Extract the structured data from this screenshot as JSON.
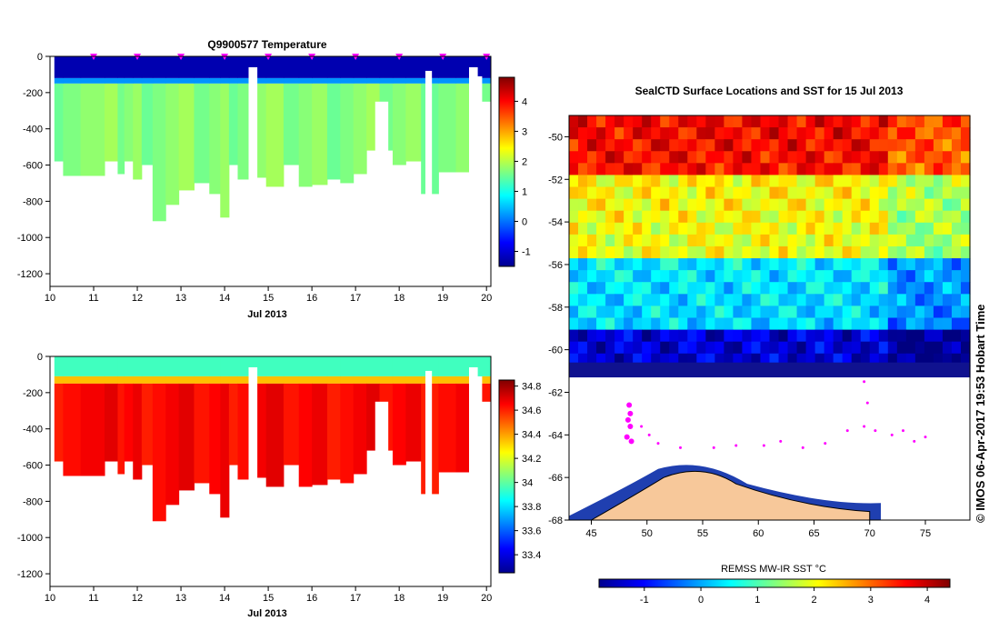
{
  "chart_data": [
    {
      "type": "heatmap",
      "id": "temperature_section",
      "title": "Q9900577  Temperature",
      "xlabel": "Jul 2013",
      "ylabel": "",
      "xlim": [
        10,
        20.1
      ],
      "ylim": [
        -1270,
        0
      ],
      "x_ticks": [
        10,
        11,
        12,
        13,
        14,
        15,
        16,
        17,
        18,
        19,
        20
      ],
      "y_ticks": [
        0,
        -200,
        -400,
        -600,
        -800,
        -1000,
        -1200
      ],
      "profile_times": [
        11,
        12,
        13,
        14,
        15,
        16,
        17,
        18,
        19,
        20
      ],
      "colorbar": {
        "range": [
          -1.5,
          4.8
        ],
        "ticks": [
          4,
          3,
          2,
          1,
          0,
          -1
        ],
        "palette": "jet"
      },
      "layers": [
        {
          "name": "surface cold layer",
          "top": 0,
          "bottom": -120,
          "value": -1.2
        },
        {
          "name": "transition",
          "top": -120,
          "bottom": -150,
          "value": 0.2
        },
        {
          "name": "deep warm water",
          "top": -150,
          "bottom": "profile_max_depth",
          "value": 1.7
        }
      ],
      "profiles": [
        {
          "t": 10.2,
          "depth": 580
        },
        {
          "t": 10.4,
          "depth": 660
        },
        {
          "t": 11.0,
          "depth": 660
        },
        {
          "t": 11.5,
          "depth": 580
        },
        {
          "t": 11.6,
          "depth": 650
        },
        {
          "t": 11.8,
          "depth": 580
        },
        {
          "t": 12.0,
          "depth": 680
        },
        {
          "t": 12.2,
          "depth": 600
        },
        {
          "t": 12.5,
          "depth": 910
        },
        {
          "t": 12.8,
          "depth": 820
        },
        {
          "t": 13.1,
          "depth": 740
        },
        {
          "t": 13.5,
          "depth": 700
        },
        {
          "t": 13.8,
          "depth": 760
        },
        {
          "t": 14.0,
          "depth": 890
        },
        {
          "t": 14.2,
          "depth": 600
        },
        {
          "t": 14.4,
          "depth": 680
        },
        {
          "t": 14.8,
          "depth": 670
        },
        {
          "t": 15.1,
          "depth": 720
        },
        {
          "t": 15.6,
          "depth": 600
        },
        {
          "t": 15.8,
          "depth": 720
        },
        {
          "t": 16.2,
          "depth": 710
        },
        {
          "t": 16.5,
          "depth": 680
        },
        {
          "t": 16.8,
          "depth": 700
        },
        {
          "t": 17.1,
          "depth": 650
        },
        {
          "t": 17.4,
          "depth": 520
        },
        {
          "t": 17.7,
          "depth": 520
        },
        {
          "t": 18.0,
          "depth": 600
        },
        {
          "t": 18.3,
          "depth": 580
        },
        {
          "t": 18.7,
          "depth": 760
        },
        {
          "t": 19.1,
          "depth": 640
        },
        {
          "t": 19.5,
          "depth": 640
        },
        {
          "t": 19.8,
          "depth": 110
        },
        {
          "t": 20.0,
          "depth": 250
        }
      ],
      "gaps": [
        {
          "t0": 14.55,
          "t1": 14.75,
          "depth": 60
        },
        {
          "t0": 17.45,
          "t1": 17.75,
          "depth": 250
        },
        {
          "t0": 18.6,
          "t1": 18.75,
          "depth": 80
        },
        {
          "t0": 19.6,
          "t1": 19.8,
          "depth": 60
        }
      ]
    },
    {
      "type": "heatmap",
      "id": "salinity_section",
      "title": "",
      "xlabel": "Jul 2013",
      "ylabel": "",
      "xlim": [
        10,
        20.1
      ],
      "ylim": [
        -1270,
        0
      ],
      "x_ticks": [
        10,
        11,
        12,
        13,
        14,
        15,
        16,
        17,
        18,
        19,
        20
      ],
      "y_ticks": [
        0,
        -200,
        -400,
        -600,
        -800,
        -1000,
        -1200
      ],
      "colorbar": {
        "range": [
          33.25,
          34.85
        ],
        "ticks": [
          "34.8",
          "34.6",
          "34.4",
          "34.2",
          "34",
          "33.8",
          "33.6",
          "33.4"
        ],
        "palette": "jet"
      },
      "layers": [
        {
          "name": "surface fresh layer",
          "top": 0,
          "bottom": -110,
          "value": 33.95
        },
        {
          "name": "halocline",
          "top": -110,
          "bottom": -150,
          "value": 34.35
        },
        {
          "name": "deep saline water",
          "top": -150,
          "bottom": "profile_max_depth",
          "value": 34.65
        }
      ]
    },
    {
      "type": "heatmap",
      "id": "sst_map",
      "title": "SealCTD Surface Locations and SST for 15 Jul 2013",
      "xlabel": "",
      "ylabel": "",
      "xlim": [
        43,
        79
      ],
      "ylim": [
        -68,
        -49
      ],
      "x_ticks": [
        45,
        50,
        55,
        60,
        65,
        70,
        75
      ],
      "y_ticks": [
        -50,
        -52,
        -54,
        -56,
        -58,
        -60,
        -62,
        -64,
        -66,
        -68
      ],
      "colorbar": {
        "label": "REMSS MW-IR SST °C",
        "range": [
          -1.8,
          4.4
        ],
        "ticks": [
          -1,
          0,
          1,
          2,
          3,
          4
        ],
        "palette": "jet"
      },
      "sst_bands": [
        {
          "lat_top": -49,
          "lat_bottom": -52,
          "sst": 3.2
        },
        {
          "lat_top": -52,
          "lat_bottom": -55.5,
          "sst": 1.8
        },
        {
          "lat_top": -55.5,
          "lat_bottom": -59,
          "sst": 0.3
        },
        {
          "lat_top": -59,
          "lat_bottom": -61.5,
          "sst": -1.2
        }
      ],
      "ice_edge_lat": -61.3,
      "antarctica_coast_lat": -66,
      "track": [
        [
          48.4,
          -62.6
        ],
        [
          48.5,
          -63.0
        ],
        [
          48.3,
          -63.3
        ],
        [
          48.5,
          -63.6
        ],
        [
          48.2,
          -64.1
        ],
        [
          48.6,
          -64.3
        ],
        [
          49.5,
          -63.6
        ],
        [
          50.2,
          -64.0
        ],
        [
          51.0,
          -64.4
        ],
        [
          53.0,
          -64.6
        ],
        [
          56.0,
          -64.6
        ],
        [
          58.0,
          -64.5
        ],
        [
          60.5,
          -64.5
        ],
        [
          62.0,
          -64.3
        ],
        [
          64.0,
          -64.6
        ],
        [
          66.0,
          -64.4
        ],
        [
          68.0,
          -63.8
        ],
        [
          69.5,
          -63.6
        ],
        [
          69.8,
          -62.5
        ],
        [
          69.5,
          -61.5
        ],
        [
          70.5,
          -63.8
        ],
        [
          72.0,
          -64.0
        ],
        [
          73.0,
          -63.8
        ],
        [
          74.0,
          -64.3
        ],
        [
          75.0,
          -64.1
        ]
      ]
    }
  ],
  "side_label": "© IMOS 06-Apr-2017 19:53 Hobart Time"
}
